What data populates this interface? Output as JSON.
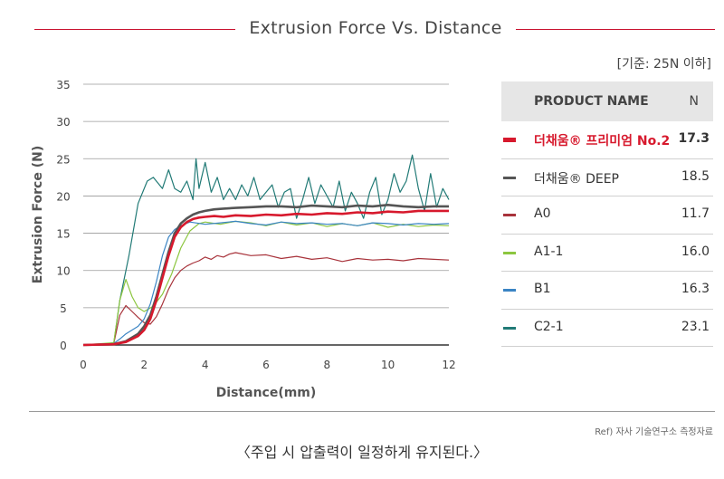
{
  "header": {
    "title": "Extrusion Force Vs. Distance",
    "criteria": "[기준: 25N 이하]"
  },
  "table": {
    "col_product": "PRODUCT NAME",
    "col_n": "N",
    "rows": [
      {
        "name": "더채움® 프리미엄 No.2",
        "value": "17.3",
        "color": "#d7192d",
        "highlight": true
      },
      {
        "name": "더채움® DEEP",
        "value": "18.5",
        "color": "#555555",
        "highlight": false
      },
      {
        "name": "A0",
        "value": "11.7",
        "color": "#a8333b",
        "highlight": false
      },
      {
        "name": "A1-1",
        "value": "16.0",
        "color": "#8cc63f",
        "highlight": false
      },
      {
        "name": "B1",
        "value": "16.3",
        "color": "#3a84c4",
        "highlight": false
      },
      {
        "name": "C2-1",
        "value": "23.1",
        "color": "#217a76",
        "highlight": false
      }
    ]
  },
  "footer": {
    "ref": "Ref) 자사 기술연구소 측정자료",
    "caption": "〈주입 시 압출력이 일정하게 유지된다.〉"
  },
  "chart_data": {
    "type": "line",
    "xlabel": "Distance(mm)",
    "ylabel": "Extrusion Force (N)",
    "xlim": [
      0,
      12
    ],
    "ylim": [
      0,
      35
    ],
    "xticks": [
      0,
      2,
      4,
      6,
      8,
      10,
      12
    ],
    "yticks": [
      0,
      5,
      10,
      15,
      20,
      25,
      30,
      35
    ],
    "grid": "horizontal",
    "series": [
      {
        "name": "C2-1",
        "color": "#217a76",
        "x": [
          0,
          1,
          1.2,
          1.5,
          1.8,
          2.1,
          2.3,
          2.6,
          2.8,
          3.0,
          3.2,
          3.4,
          3.6,
          3.7,
          3.8,
          4.0,
          4.2,
          4.4,
          4.6,
          4.8,
          5.0,
          5.2,
          5.4,
          5.6,
          5.8,
          6.0,
          6.2,
          6.4,
          6.6,
          6.8,
          7.0,
          7.2,
          7.4,
          7.6,
          7.8,
          8.0,
          8.2,
          8.4,
          8.6,
          8.8,
          9.0,
          9.2,
          9.4,
          9.6,
          9.8,
          10.0,
          10.2,
          10.4,
          10.6,
          10.8,
          11.0,
          11.2,
          11.4,
          11.6,
          11.8,
          12.0
        ],
        "y": [
          0,
          0.2,
          6,
          12,
          19,
          22,
          22.5,
          21,
          23.5,
          21,
          20.5,
          22,
          19.5,
          25,
          21,
          24.5,
          20.5,
          22.5,
          19.5,
          21,
          19.5,
          21.5,
          20,
          22.5,
          19.5,
          20.5,
          21.5,
          18.5,
          20.5,
          21,
          17,
          19.5,
          22.5,
          19,
          21.5,
          20,
          18.5,
          22,
          18,
          20.5,
          19,
          17,
          20.5,
          22.5,
          17.5,
          19.5,
          23,
          20.5,
          22,
          25.5,
          21,
          18,
          23,
          18.5,
          21,
          19.5
        ]
      },
      {
        "name": "A0",
        "color": "#a8333b",
        "x": [
          0,
          1,
          1.2,
          1.4,
          1.6,
          1.8,
          2.0,
          2.2,
          2.4,
          2.6,
          2.8,
          3.0,
          3.2,
          3.4,
          3.6,
          3.8,
          4.0,
          4.2,
          4.4,
          4.6,
          4.8,
          5.0,
          5.5,
          6.0,
          6.5,
          7.0,
          7.5,
          8.0,
          8.5,
          9.0,
          9.5,
          10.0,
          10.5,
          11.0,
          11.5,
          12.0
        ],
        "y": [
          0,
          0.2,
          4,
          5.3,
          4.5,
          3.7,
          3.0,
          2.8,
          3.8,
          5.5,
          7.5,
          9.0,
          10.0,
          10.6,
          11.0,
          11.3,
          11.8,
          11.5,
          12.0,
          11.8,
          12.2,
          12.4,
          12.0,
          12.1,
          11.6,
          11.9,
          11.5,
          11.7,
          11.2,
          11.6,
          11.4,
          11.5,
          11.3,
          11.6,
          11.5,
          11.4
        ]
      },
      {
        "name": "A1-1",
        "color": "#8cc63f",
        "x": [
          0,
          1,
          1.2,
          1.4,
          1.6,
          1.8,
          2.0,
          2.3,
          2.6,
          2.9,
          3.2,
          3.5,
          3.8,
          4.0,
          4.5,
          5.0,
          5.5,
          6.0,
          6.5,
          7.0,
          7.5,
          8.0,
          8.5,
          9.0,
          9.5,
          10.0,
          10.5,
          11.0,
          11.5,
          12.0
        ],
        "y": [
          0,
          0.3,
          6,
          8.8,
          6.5,
          5.0,
          4.5,
          5.2,
          6.8,
          9.5,
          13,
          15.3,
          16.3,
          16.5,
          16.2,
          16.6,
          16.4,
          16.0,
          16.5,
          16.1,
          16.4,
          15.9,
          16.3,
          16.0,
          16.4,
          15.8,
          16.2,
          15.9,
          16.1,
          16.0
        ]
      },
      {
        "name": "B1",
        "color": "#3a84c4",
        "x": [
          0,
          1,
          1.2,
          1.4,
          1.6,
          1.8,
          2.0,
          2.2,
          2.4,
          2.6,
          2.8,
          3.0,
          3.2,
          3.5,
          4.0,
          4.5,
          5.0,
          5.5,
          6.0,
          6.5,
          7.0,
          7.5,
          8.0,
          8.5,
          9.0,
          9.5,
          10.0,
          10.5,
          11.0,
          11.5,
          12.0
        ],
        "y": [
          0,
          0.2,
          0.8,
          1.5,
          2.0,
          2.5,
          3.5,
          5.5,
          8.5,
          12,
          14.5,
          15.5,
          16.0,
          16.5,
          16.2,
          16.4,
          16.6,
          16.3,
          16.1,
          16.5,
          16.3,
          16.4,
          16.2,
          16.3,
          16.0,
          16.4,
          16.3,
          16.1,
          16.3,
          16.2,
          16.3
        ]
      },
      {
        "name": "더채움® DEEP",
        "color": "#555555",
        "x": [
          0,
          1,
          1.4,
          1.8,
          2.0,
          2.2,
          2.4,
          2.6,
          2.8,
          3.0,
          3.2,
          3.4,
          3.6,
          3.8,
          4.0,
          4.3,
          4.6,
          5.0,
          5.5,
          6.0,
          6.5,
          7.0,
          7.5,
          8.0,
          8.5,
          9.0,
          9.5,
          10.0,
          10.5,
          11.0,
          11.5,
          12.0
        ],
        "y": [
          0,
          0.1,
          0.5,
          1.5,
          2.5,
          4.0,
          6.5,
          9.5,
          12.5,
          15,
          16.3,
          17.0,
          17.5,
          17.8,
          18.0,
          18.2,
          18.3,
          18.4,
          18.5,
          18.6,
          18.6,
          18.5,
          18.7,
          18.6,
          18.5,
          18.7,
          18.6,
          18.8,
          18.6,
          18.5,
          18.6,
          18.6
        ]
      },
      {
        "name": "더채움® 프리미엄 No.2",
        "color": "#d7192d",
        "x": [
          0,
          1,
          1.4,
          1.8,
          2.0,
          2.2,
          2.4,
          2.6,
          2.8,
          3.0,
          3.2,
          3.4,
          3.6,
          3.8,
          4.0,
          4.3,
          4.6,
          5.0,
          5.5,
          6.0,
          6.5,
          7.0,
          7.5,
          8.0,
          8.5,
          9.0,
          9.5,
          10.0,
          10.5,
          11.0,
          11.5,
          12.0
        ],
        "y": [
          0,
          0.1,
          0.4,
          1.2,
          2.0,
          3.5,
          6.0,
          9.0,
          12.0,
          14.5,
          15.8,
          16.5,
          16.9,
          17.1,
          17.2,
          17.3,
          17.2,
          17.4,
          17.3,
          17.5,
          17.4,
          17.6,
          17.5,
          17.7,
          17.6,
          17.8,
          17.7,
          17.9,
          17.8,
          18.0,
          18.0,
          18.0
        ]
      }
    ]
  }
}
